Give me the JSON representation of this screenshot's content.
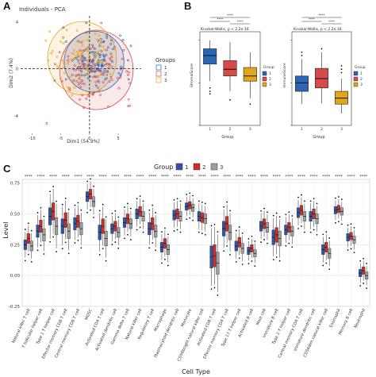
{
  "panels": {
    "a": "A",
    "b": "B",
    "c": "C"
  },
  "colors": {
    "group1": "#2a66b4",
    "group2": "#d64a4b",
    "group3": "#e3a51c",
    "c_group1": "#2f55a4",
    "c_group2": "#c9302c",
    "c_group3": "#9e9e9e"
  },
  "chart_data": [
    {
      "id": "A",
      "type": "scatter",
      "title": "Individuals - PCA",
      "xlabel": "Dim1 (54.9%)",
      "ylabel": "Dim2 (7.4%)",
      "xlim": [
        -12,
        9
      ],
      "ylim": [
        -5.5,
        4.5
      ],
      "xticks": [
        -10,
        -5,
        0,
        5
      ],
      "yticks": [
        -4,
        0,
        4
      ],
      "legend": {
        "title": "Groups",
        "labels": [
          "1",
          "2",
          "3"
        ],
        "placement": "right"
      },
      "series": [
        {
          "name": "1",
          "center": [
            0.8,
            0.6
          ],
          "spread": [
            2.6,
            1.0
          ]
        },
        {
          "name": "2",
          "center": [
            1.2,
            -0.1
          ],
          "spread": [
            3.2,
            1.3
          ]
        },
        {
          "name": "3",
          "center": [
            -1.3,
            0.9
          ],
          "spread": [
            3.0,
            1.2
          ]
        }
      ]
    },
    {
      "id": "B1",
      "type": "box",
      "annotation": "Kruskal-Wallis, p < 2.2e-16",
      "xlabel": "Group",
      "ylabel": "StromalScore",
      "categories": [
        "1",
        "2",
        "3"
      ],
      "legend": {
        "title": "Group",
        "labels": [
          "1",
          "2",
          "3"
        ]
      },
      "significance": [
        "****",
        "****",
        "****"
      ],
      "boxes": [
        {
          "q1": 72,
          "median": 82,
          "q3": 90,
          "low": 52,
          "high": 100,
          "outliers": [
            44,
            40,
            37
          ]
        },
        {
          "q1": 58,
          "median": 66,
          "q3": 76,
          "low": 40,
          "high": 98,
          "outliers": [
            30
          ]
        },
        {
          "q1": 52,
          "median": 58,
          "q3": 68,
          "low": 32,
          "high": 86,
          "outliers": [
            25
          ]
        }
      ]
    },
    {
      "id": "B2",
      "type": "box",
      "annotation": "Kruskal-Wallis, p < 2.2e-16",
      "xlabel": "Group",
      "ylabel": "ImmuneScore",
      "categories": [
        "1",
        "2",
        "3"
      ],
      "legend": {
        "title": "Group",
        "labels": [
          "1",
          "2",
          "3"
        ]
      },
      "significance": [
        "****",
        "****",
        "****"
      ],
      "boxes": [
        {
          "q1": 40,
          "median": 50,
          "q3": 58,
          "low": 25,
          "high": 78,
          "outliers": [
            82,
            86
          ]
        },
        {
          "q1": 44,
          "median": 55,
          "q3": 67,
          "low": 26,
          "high": 86,
          "outliers": [
            90
          ]
        },
        {
          "q1": 25,
          "median": 32,
          "q3": 40,
          "low": 14,
          "high": 55,
          "outliers": [
            62,
            66,
            70
          ]
        }
      ]
    },
    {
      "id": "C",
      "type": "box",
      "xlabel": "Cell Type",
      "ylabel": "Level",
      "ylim": [
        -0.25,
        0.78
      ],
      "yticks": [
        0.75,
        0.5,
        0.25,
        0.0,
        -0.25
      ],
      "ytick_labels": [
        "0.75",
        "0.50",
        "0.25",
        "0.00",
        "-0.25"
      ],
      "legend": {
        "title": "Group",
        "labels": [
          "1",
          "2",
          "3"
        ],
        "placement": "top"
      },
      "significance": "****",
      "categories": [
        "Natural killer T cell",
        "T follicular helper cell",
        "Type 1 T helper cell",
        "Effector memory CD8 T cell",
        "Central memory CD8 T cell",
        "MDSC",
        "Activated CD4 T cell",
        "Activated dendritic cell",
        "Gamma delta T cell",
        "Natural killer cell",
        "Regulatory T cell",
        "Macrophage",
        "Plasmacytoid dendritic cell",
        "Monocyte",
        "CD56bright natural killer cell",
        "Activated CD8 T cell",
        "Effector memory CD4 T cell",
        "Type 17 T helper cell",
        "Activated B cell",
        "Mast cell",
        "Immature B cell",
        "Type 2 T helper cell",
        "Central memory CD4 T cell",
        "Immature dendritic cell",
        "CD56dim natural killer cell",
        "Eosinophil",
        "Memory B cell",
        "Neutrophil"
      ],
      "medians": [
        [
          0.25,
          0.3,
          0.24
        ],
        [
          0.36,
          0.4,
          0.33
        ],
        [
          0.48,
          0.52,
          0.4
        ],
        [
          0.4,
          0.45,
          0.36
        ],
        [
          0.42,
          0.44,
          0.38
        ],
        [
          0.64,
          0.66,
          0.6
        ],
        [
          0.35,
          0.4,
          0.3
        ],
        [
          0.38,
          0.4,
          0.35
        ],
        [
          0.43,
          0.46,
          0.42
        ],
        [
          0.5,
          0.52,
          0.48
        ],
        [
          0.38,
          0.42,
          0.36
        ],
        [
          0.23,
          0.26,
          0.21
        ],
        [
          0.49,
          0.5,
          0.48
        ],
        [
          0.56,
          0.57,
          0.55
        ],
        [
          0.48,
          0.47,
          0.46
        ],
        [
          0.15,
          0.16,
          0.1
        ],
        [
          0.38,
          0.42,
          0.35
        ],
        [
          0.24,
          0.27,
          0.22
        ],
        [
          0.2,
          0.22,
          0.18
        ],
        [
          0.4,
          0.42,
          0.39
        ],
        [
          0.31,
          0.33,
          0.3
        ],
        [
          0.37,
          0.39,
          0.36
        ],
        [
          0.51,
          0.53,
          0.48
        ],
        [
          0.48,
          0.5,
          0.46
        ],
        [
          0.21,
          0.23,
          0.18
        ],
        [
          0.53,
          0.54,
          0.52
        ],
        [
          0.31,
          0.32,
          0.29
        ],
        [
          0.02,
          0.04,
          0.0
        ]
      ],
      "iqr_half": [
        0.04,
        0.05,
        0.07,
        0.06,
        0.05,
        0.04,
        0.06,
        0.04,
        0.04,
        0.04,
        0.05,
        0.04,
        0.04,
        0.03,
        0.04,
        0.09,
        0.06,
        0.04,
        0.03,
        0.04,
        0.06,
        0.04,
        0.04,
        0.04,
        0.04,
        0.03,
        0.03,
        0.03
      ]
    }
  ]
}
